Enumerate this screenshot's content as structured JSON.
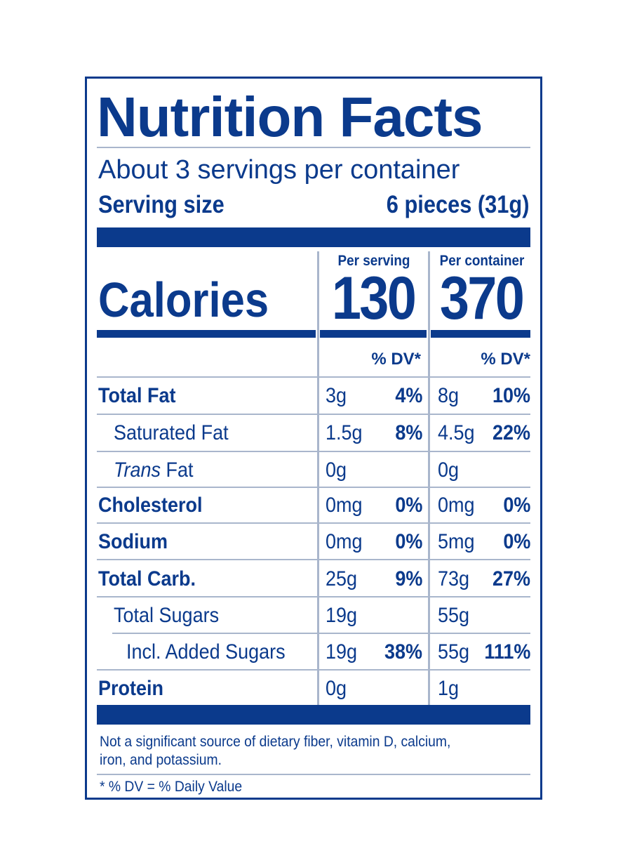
{
  "title": "Nutrition Facts",
  "servings_per_container": "About 3 servings per container",
  "serving_size_label": "Serving size",
  "serving_size_value": "6 pieces (31g)",
  "per_serving_header": "Per serving",
  "per_container_header": "Per container",
  "calories_label": "Calories",
  "calories_per_serving": "130",
  "calories_per_container": "370",
  "dv_header": "% DV*",
  "nutrients": [
    {
      "name": "Total Fat",
      "serv_amt": "3g",
      "serv_dv": "4%",
      "cont_amt": "8g",
      "cont_dv": "10%"
    },
    {
      "name": "Saturated Fat",
      "serv_amt": "1.5g",
      "serv_dv": "8%",
      "cont_amt": "4.5g",
      "cont_dv": "22%"
    },
    {
      "name_italic": "Trans",
      "name_rest": " Fat",
      "serv_amt": "0g",
      "cont_amt": "0g"
    },
    {
      "name": "Cholesterol",
      "serv_amt": "0mg",
      "serv_dv": "0%",
      "cont_amt": "0mg",
      "cont_dv": "0%"
    },
    {
      "name": "Sodium",
      "serv_amt": "0mg",
      "serv_dv": "0%",
      "cont_amt": "5mg",
      "cont_dv": "0%"
    },
    {
      "name": "Total Carb.",
      "serv_amt": "25g",
      "serv_dv": "9%",
      "cont_amt": "73g",
      "cont_dv": "27%"
    },
    {
      "name": "Total Sugars",
      "serv_amt": "19g",
      "cont_amt": "55g"
    },
    {
      "name": "Incl. Added Sugars",
      "serv_amt": "19g",
      "serv_dv": "38%",
      "cont_amt": "55g",
      "cont_dv": "111%"
    },
    {
      "name": "Protein",
      "serv_amt": "0g",
      "cont_amt": "1g"
    }
  ],
  "footnote_line1": "Not a significant source of dietary fiber, vitamin D, calcium,",
  "footnote_line2": "iron, and potassium.",
  "dv_footnote": "* % DV = % Daily Value",
  "colors": {
    "ink": "#0b3a8c",
    "rule": "#a9b6cc"
  }
}
